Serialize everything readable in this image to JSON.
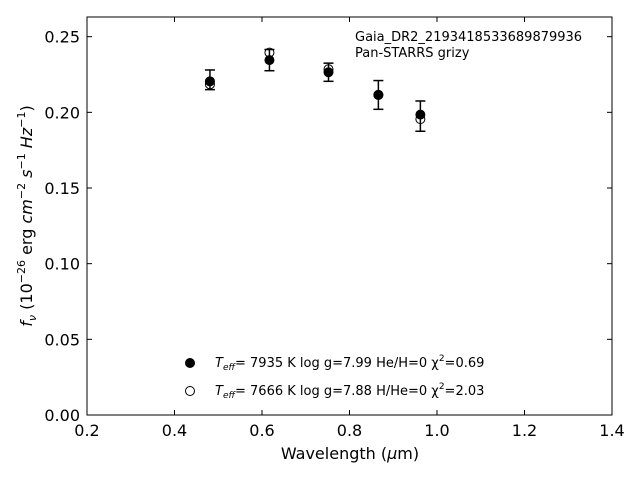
{
  "chart_data": {
    "type": "scatter",
    "annotation": {
      "line1": "Gaia_DR2_2193418533689879936",
      "line2": "Pan-STARRS grizy"
    },
    "xlabel": {
      "main": "Wavelength (",
      "mu": "μ",
      "unit": "m)"
    },
    "ylabel": {
      "f": "f",
      "sub": "ν",
      "pre": " (10",
      "exp1": "−26",
      "mid": " erg ",
      "cm": "cm",
      "exp2": "−2",
      "s": " s",
      "exp3": "−1",
      "hz": " Hz",
      "exp4": "−1",
      "post": ")"
    },
    "xlim": [
      0.2,
      1.4
    ],
    "ylim": [
      0.0,
      0.263
    ],
    "xticks": [
      0.2,
      0.4,
      0.6,
      0.8,
      1.0,
      1.2,
      1.4
    ],
    "xtick_labels": [
      "0.2",
      "0.4",
      "0.6",
      "0.8",
      "1.0",
      "1.2",
      "1.4"
    ],
    "yticks": [
      0.0,
      0.05,
      0.1,
      0.15,
      0.2,
      0.25
    ],
    "ytick_labels": [
      "0.00",
      "0.05",
      "0.10",
      "0.15",
      "0.20",
      "0.25"
    ],
    "observed": {
      "x": [
        0.481,
        0.617,
        0.752,
        0.866,
        0.962
      ],
      "y": [
        0.2215,
        0.2345,
        0.2265,
        0.2115,
        0.1975
      ],
      "yerr": [
        0.0065,
        0.007,
        0.006,
        0.0095,
        0.01
      ]
    },
    "series": [
      {
        "marker": "filled",
        "x": [
          0.481,
          0.617,
          0.752,
          0.866,
          0.962
        ],
        "y": [
          0.2205,
          0.2345,
          0.2265,
          0.2115,
          0.1985
        ],
        "legend": {
          "teff_label": "T",
          "teff_sub": "eff",
          "text": "=  7935 K  log g=7.99  He/H=0  χ",
          "chi_sup": "2",
          "chi_val": "=0.69"
        }
      },
      {
        "marker": "open",
        "x": [
          0.481,
          0.617,
          0.752,
          0.866,
          0.962
        ],
        "y": [
          0.2185,
          0.2395,
          0.2285,
          0.2115,
          0.1955
        ],
        "legend": {
          "teff_label": "T",
          "teff_sub": "eff",
          "text": "=  7666 K  log g=7.88  H/He=0  χ",
          "chi_sup": "2",
          "chi_val": "=2.03"
        }
      }
    ],
    "legend_position": "lower-center",
    "grid": false
  }
}
